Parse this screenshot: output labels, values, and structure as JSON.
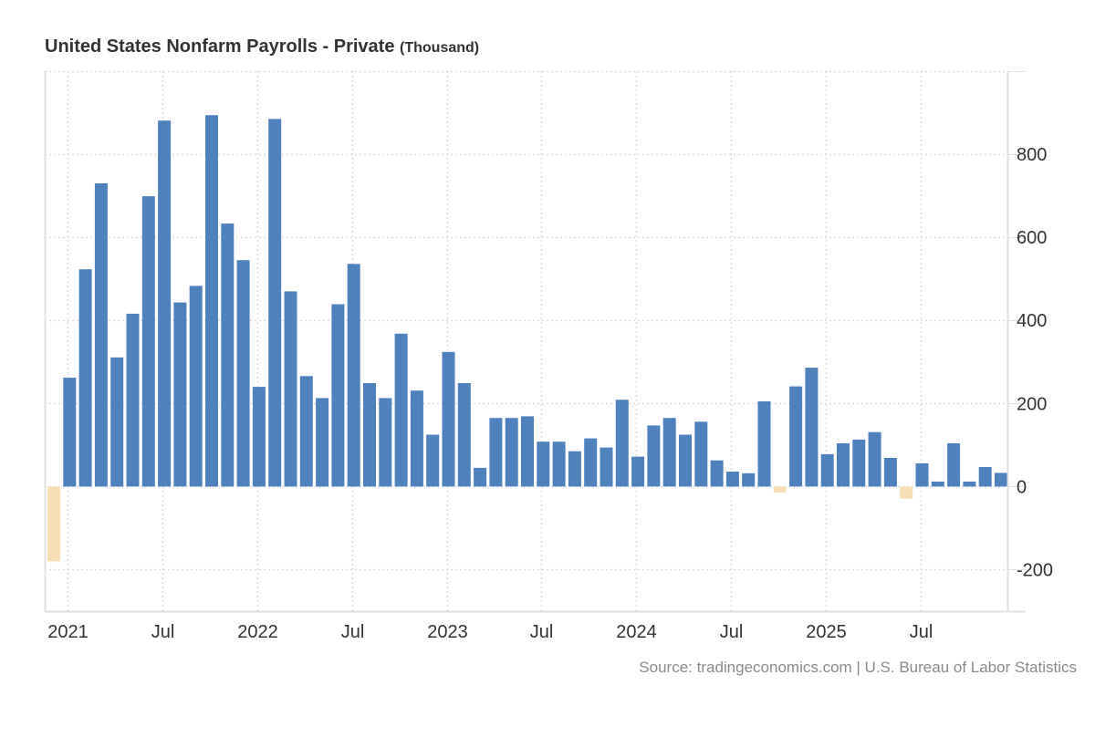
{
  "title": {
    "main": "United States Nonfarm Payrolls - Private",
    "unit": "(Thousand)"
  },
  "source": "Source: tradingeconomics.com | U.S. Bureau of Labor Statistics",
  "colors": {
    "positive": "#4f81bd",
    "negative": "#f5deb3",
    "grid": "#dddddd",
    "axis": "#e0e0e0"
  },
  "chart_data": {
    "type": "bar",
    "title": "United States Nonfarm Payrolls - Private (Thousand)",
    "xlabel": "",
    "ylabel": "Thousand",
    "ylim": [
      -300,
      1000
    ],
    "yticks": [
      -200,
      0,
      200,
      400,
      600,
      800
    ],
    "ytick_labels": [
      "-200",
      "0",
      "200",
      "400",
      "600",
      "800"
    ],
    "xtick_labels": [
      {
        "label": "2021",
        "month": "2021-01"
      },
      {
        "label": "Jul",
        "month": "2021-07"
      },
      {
        "label": "2022",
        "month": "2022-01"
      },
      {
        "label": "Jul",
        "month": "2022-07"
      },
      {
        "label": "2023",
        "month": "2023-01"
      },
      {
        "label": "Jul",
        "month": "2023-07"
      },
      {
        "label": "2024",
        "month": "2024-01"
      },
      {
        "label": "Jul",
        "month": "2024-07"
      },
      {
        "label": "2025",
        "month": "2025-01"
      },
      {
        "label": "Jul",
        "month": "2025-07"
      }
    ],
    "grid": true,
    "legend": "none",
    "categories": [
      "2020-12",
      "2021-01",
      "2021-02",
      "2021-03",
      "2021-04",
      "2021-05",
      "2021-06",
      "2021-07",
      "2021-08",
      "2021-09",
      "2021-10",
      "2021-11",
      "2021-12",
      "2022-01",
      "2022-02",
      "2022-03",
      "2022-04",
      "2022-05",
      "2022-06",
      "2022-07",
      "2022-08",
      "2022-09",
      "2022-10",
      "2022-11",
      "2022-12",
      "2023-01",
      "2023-02",
      "2023-03",
      "2023-04",
      "2023-05",
      "2023-06",
      "2023-07",
      "2023-08",
      "2023-09",
      "2023-10",
      "2023-11",
      "2023-12",
      "2024-01",
      "2024-02",
      "2024-03",
      "2024-04",
      "2024-05",
      "2024-06",
      "2024-07",
      "2024-08",
      "2024-09",
      "2024-10",
      "2024-11",
      "2024-12",
      "2025-01",
      "2025-02",
      "2025-03",
      "2025-04",
      "2025-05",
      "2025-06",
      "2025-07",
      "2025-08",
      "2025-09",
      "2025-10",
      "2025-11",
      "2025-12"
    ],
    "values": [
      -180,
      262,
      523,
      730,
      311,
      416,
      699,
      881,
      443,
      483,
      894,
      633,
      545,
      240,
      885,
      470,
      266,
      213,
      439,
      536,
      249,
      213,
      368,
      231,
      125,
      324,
      249,
      45,
      165,
      165,
      169,
      108,
      108,
      85,
      116,
      94,
      209,
      72,
      147,
      165,
      125,
      156,
      63,
      36,
      32,
      205,
      -14,
      241,
      286,
      78,
      104,
      113,
      131,
      69,
      -29,
      56,
      12,
      104,
      12,
      47,
      33
    ]
  }
}
